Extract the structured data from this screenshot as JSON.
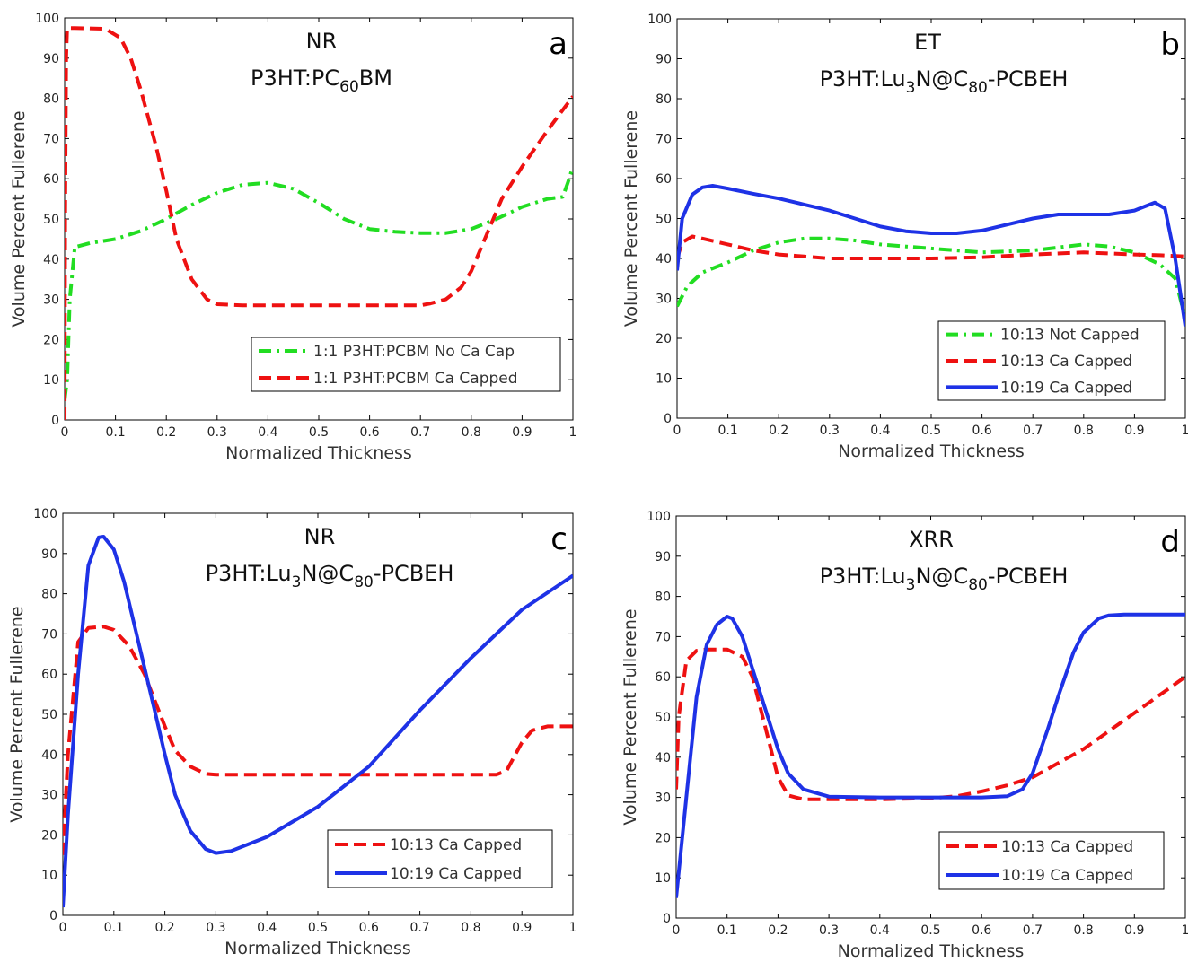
{
  "chart_data": [
    {
      "type": "line",
      "panel_letter": "a",
      "title_line1": "NR",
      "title_line2": {
        "pre": "P3HT:PC",
        "sub": "60",
        "post": "BM"
      },
      "xlabel": "Normalized Thickness",
      "ylabel": "Volume Percent Fullerene",
      "xlim": [
        0,
        1
      ],
      "ylim": [
        0,
        100
      ],
      "xticks": [
        "0",
        "0.1",
        "0.2",
        "0.3",
        "0.4",
        "0.5",
        "0.6",
        "0.7",
        "0.8",
        "0.9",
        "1"
      ],
      "yticks": [
        "0",
        "10",
        "20",
        "30",
        "40",
        "50",
        "60",
        "70",
        "80",
        "90",
        "100"
      ],
      "legend_position": "lower-right",
      "series": [
        {
          "name": "1:1 P3HT:PCBM No Ca Cap",
          "color": "#22dd22",
          "style": "dashdot",
          "x": [
            0,
            0.005,
            0.01,
            0.02,
            0.05,
            0.1,
            0.15,
            0.2,
            0.25,
            0.3,
            0.35,
            0.4,
            0.45,
            0.5,
            0.55,
            0.6,
            0.65,
            0.7,
            0.75,
            0.8,
            0.85,
            0.9,
            0.95,
            0.98,
            0.99,
            1.0
          ],
          "y": [
            5,
            10,
            30,
            43,
            44,
            45,
            47,
            50,
            53.5,
            56.5,
            58.5,
            59,
            57.5,
            54,
            50,
            47.5,
            46.8,
            46.5,
            46.5,
            47.5,
            50,
            53,
            55,
            55.5,
            59,
            63
          ]
        },
        {
          "name": "1:1 P3HT:PCBM Ca Capped",
          "color": "#ee1111",
          "style": "dashed",
          "x": [
            0,
            0.001,
            0.003,
            0.005,
            0.02,
            0.08,
            0.11,
            0.13,
            0.15,
            0.18,
            0.2,
            0.22,
            0.25,
            0.28,
            0.3,
            0.35,
            0.4,
            0.5,
            0.6,
            0.7,
            0.72,
            0.75,
            0.78,
            0.8,
            0.83,
            0.86,
            0.9,
            0.95,
            1.0
          ],
          "y": [
            0,
            50,
            90,
            97.5,
            97.5,
            97.3,
            95,
            90,
            82,
            68,
            57,
            45,
            35,
            30,
            28.8,
            28.5,
            28.5,
            28.5,
            28.5,
            28.5,
            29,
            30,
            33,
            37,
            46,
            55,
            63,
            72,
            80.5
          ]
        }
      ]
    },
    {
      "type": "line",
      "panel_letter": "b",
      "title_line1": "ET",
      "title_line2": {
        "pre": "P3HT:Lu",
        "sub": "3",
        "post": "N@C",
        "sub2": "80",
        "post2": "-PCBEH"
      },
      "xlabel": "Normalized Thickness",
      "ylabel": "Volume Percent Fullerene",
      "xlim": [
        0,
        1
      ],
      "ylim": [
        0,
        100
      ],
      "xticks": [
        "0",
        "0.1",
        "0.2",
        "0.3",
        "0.4",
        "0.5",
        "0.6",
        "0.7",
        "0.8",
        "0.9",
        "1"
      ],
      "yticks": [
        "0",
        "10",
        "20",
        "30",
        "40",
        "50",
        "60",
        "70",
        "80",
        "90",
        "100"
      ],
      "legend_position": "lower-right",
      "series": [
        {
          "name": "10:13 Not Capped",
          "color": "#22dd22",
          "style": "dashdot",
          "x": [
            0,
            0.02,
            0.05,
            0.1,
            0.15,
            0.2,
            0.25,
            0.3,
            0.35,
            0.4,
            0.5,
            0.6,
            0.7,
            0.8,
            0.85,
            0.9,
            0.95,
            0.98,
            1.0
          ],
          "y": [
            28,
            33,
            36.5,
            39,
            42,
            44,
            45,
            45,
            44.5,
            43.5,
            42.5,
            41.5,
            42,
            43.5,
            43,
            41.5,
            38.5,
            35,
            25
          ]
        },
        {
          "name": "10:13 Ca Capped",
          "color": "#ee1111",
          "style": "dashed",
          "x": [
            0,
            0.01,
            0.03,
            0.05,
            0.1,
            0.15,
            0.2,
            0.25,
            0.3,
            0.4,
            0.5,
            0.6,
            0.7,
            0.8,
            0.9,
            0.95,
            1.0
          ],
          "y": [
            40,
            44,
            45.5,
            45,
            43.5,
            42,
            41,
            40.5,
            40,
            40,
            40,
            40.3,
            41,
            41.5,
            41,
            40.8,
            40.5
          ]
        },
        {
          "name": "10:19 Ca Capped",
          "color": "#1e32e6",
          "style": "solid",
          "x": [
            0,
            0.01,
            0.03,
            0.05,
            0.07,
            0.1,
            0.15,
            0.2,
            0.25,
            0.3,
            0.35,
            0.4,
            0.45,
            0.5,
            0.55,
            0.6,
            0.65,
            0.7,
            0.75,
            0.8,
            0.85,
            0.9,
            0.92,
            0.94,
            0.96,
            0.98,
            1.0
          ],
          "y": [
            37,
            50,
            56,
            57.8,
            58.2,
            57.5,
            56.2,
            55,
            53.5,
            52,
            50,
            48,
            46.8,
            46.3,
            46.3,
            47,
            48.5,
            50,
            51,
            51,
            51,
            52,
            53,
            54,
            52.5,
            40,
            23
          ]
        }
      ]
    },
    {
      "type": "line",
      "panel_letter": "c",
      "title_line1": "NR",
      "title_line2": {
        "pre": "P3HT:Lu",
        "sub": "3",
        "post": "N@C",
        "sub2": "80",
        "post2": "-PCBEH"
      },
      "xlabel": "Normalized Thickness",
      "ylabel": "Volume Percent Fullerene",
      "xlim": [
        0,
        1
      ],
      "ylim": [
        0,
        100
      ],
      "xticks": [
        "0",
        "0.1",
        "0.2",
        "0.3",
        "0.4",
        "0.5",
        "0.6",
        "0.7",
        "0.8",
        "0.9",
        "1"
      ],
      "yticks": [
        "0",
        "10",
        "20",
        "30",
        "40",
        "50",
        "60",
        "70",
        "80",
        "90",
        "100"
      ],
      "legend_position": "lower-right",
      "series": [
        {
          "name": "10:13 Ca Capped",
          "color": "#ee1111",
          "style": "dashed",
          "x": [
            0,
            0.01,
            0.03,
            0.05,
            0.08,
            0.1,
            0.13,
            0.16,
            0.2,
            0.22,
            0.25,
            0.28,
            0.3,
            0.5,
            0.7,
            0.85,
            0.87,
            0.9,
            0.92,
            0.95,
            1.0
          ],
          "y": [
            15,
            40,
            68,
            71.5,
            71.8,
            71,
            67,
            60,
            47,
            41,
            37,
            35.2,
            35,
            35,
            35,
            35,
            36,
            43,
            46,
            47,
            47
          ]
        },
        {
          "name": "10:19 Ca Capped",
          "color": "#1e32e6",
          "style": "solid",
          "x": [
            0,
            0.01,
            0.03,
            0.05,
            0.07,
            0.08,
            0.1,
            0.12,
            0.15,
            0.18,
            0.2,
            0.22,
            0.25,
            0.28,
            0.3,
            0.33,
            0.4,
            0.5,
            0.6,
            0.7,
            0.8,
            0.9,
            1.0
          ],
          "y": [
            2,
            25,
            60,
            87,
            94,
            94.2,
            91,
            83,
            67,
            51,
            40,
            30,
            21,
            16.5,
            15.5,
            16,
            19.5,
            27,
            37,
            51,
            64,
            76,
            84.5
          ]
        }
      ]
    },
    {
      "type": "line",
      "panel_letter": "d",
      "title_line1": "XRR",
      "title_line2": {
        "pre": "P3HT:Lu",
        "sub": "3",
        "post": "N@C",
        "sub2": "80",
        "post2": "-PCBEH"
      },
      "xlabel": "Normalized Thickness",
      "ylabel": "Volume Percent Fullerene",
      "xlim": [
        0,
        1
      ],
      "ylim": [
        0,
        100
      ],
      "xticks": [
        "0",
        "0.1",
        "0.2",
        "0.3",
        "0.4",
        "0.5",
        "0.6",
        "0.7",
        "0.8",
        "0.9",
        "1"
      ],
      "yticks": [
        "0",
        "10",
        "20",
        "30",
        "40",
        "50",
        "60",
        "70",
        "80",
        "90",
        "100"
      ],
      "legend_position": "lower-right",
      "series": [
        {
          "name": "10:13 Ca Capped",
          "color": "#ee1111",
          "style": "dashed",
          "x": [
            0,
            0.005,
            0.02,
            0.04,
            0.06,
            0.1,
            0.13,
            0.15,
            0.18,
            0.2,
            0.22,
            0.25,
            0.3,
            0.4,
            0.5,
            0.55,
            0.6,
            0.65,
            0.7,
            0.8,
            0.9,
            1.0
          ],
          "y": [
            32,
            50,
            64,
            66.5,
            66.8,
            66.8,
            65,
            60,
            45,
            35,
            30.5,
            29.5,
            29.5,
            29.5,
            29.8,
            30.3,
            31.5,
            33,
            35,
            42,
            51,
            60
          ]
        },
        {
          "name": "10:19 Ca Capped",
          "color": "#1e32e6",
          "style": "solid",
          "x": [
            0,
            0.02,
            0.04,
            0.06,
            0.08,
            0.1,
            0.11,
            0.13,
            0.15,
            0.18,
            0.2,
            0.22,
            0.25,
            0.3,
            0.4,
            0.5,
            0.6,
            0.65,
            0.68,
            0.7,
            0.73,
            0.75,
            0.78,
            0.8,
            0.83,
            0.85,
            0.88,
            0.9,
            0.95,
            1.0
          ],
          "y": [
            5,
            30,
            55,
            68,
            73,
            75,
            74.5,
            70,
            62,
            50,
            42,
            36,
            32,
            30.2,
            30,
            30,
            30,
            30.3,
            32,
            36,
            47,
            55,
            66,
            71,
            74.5,
            75.3,
            75.5,
            75.5,
            75.5,
            75.5
          ]
        }
      ]
    }
  ]
}
